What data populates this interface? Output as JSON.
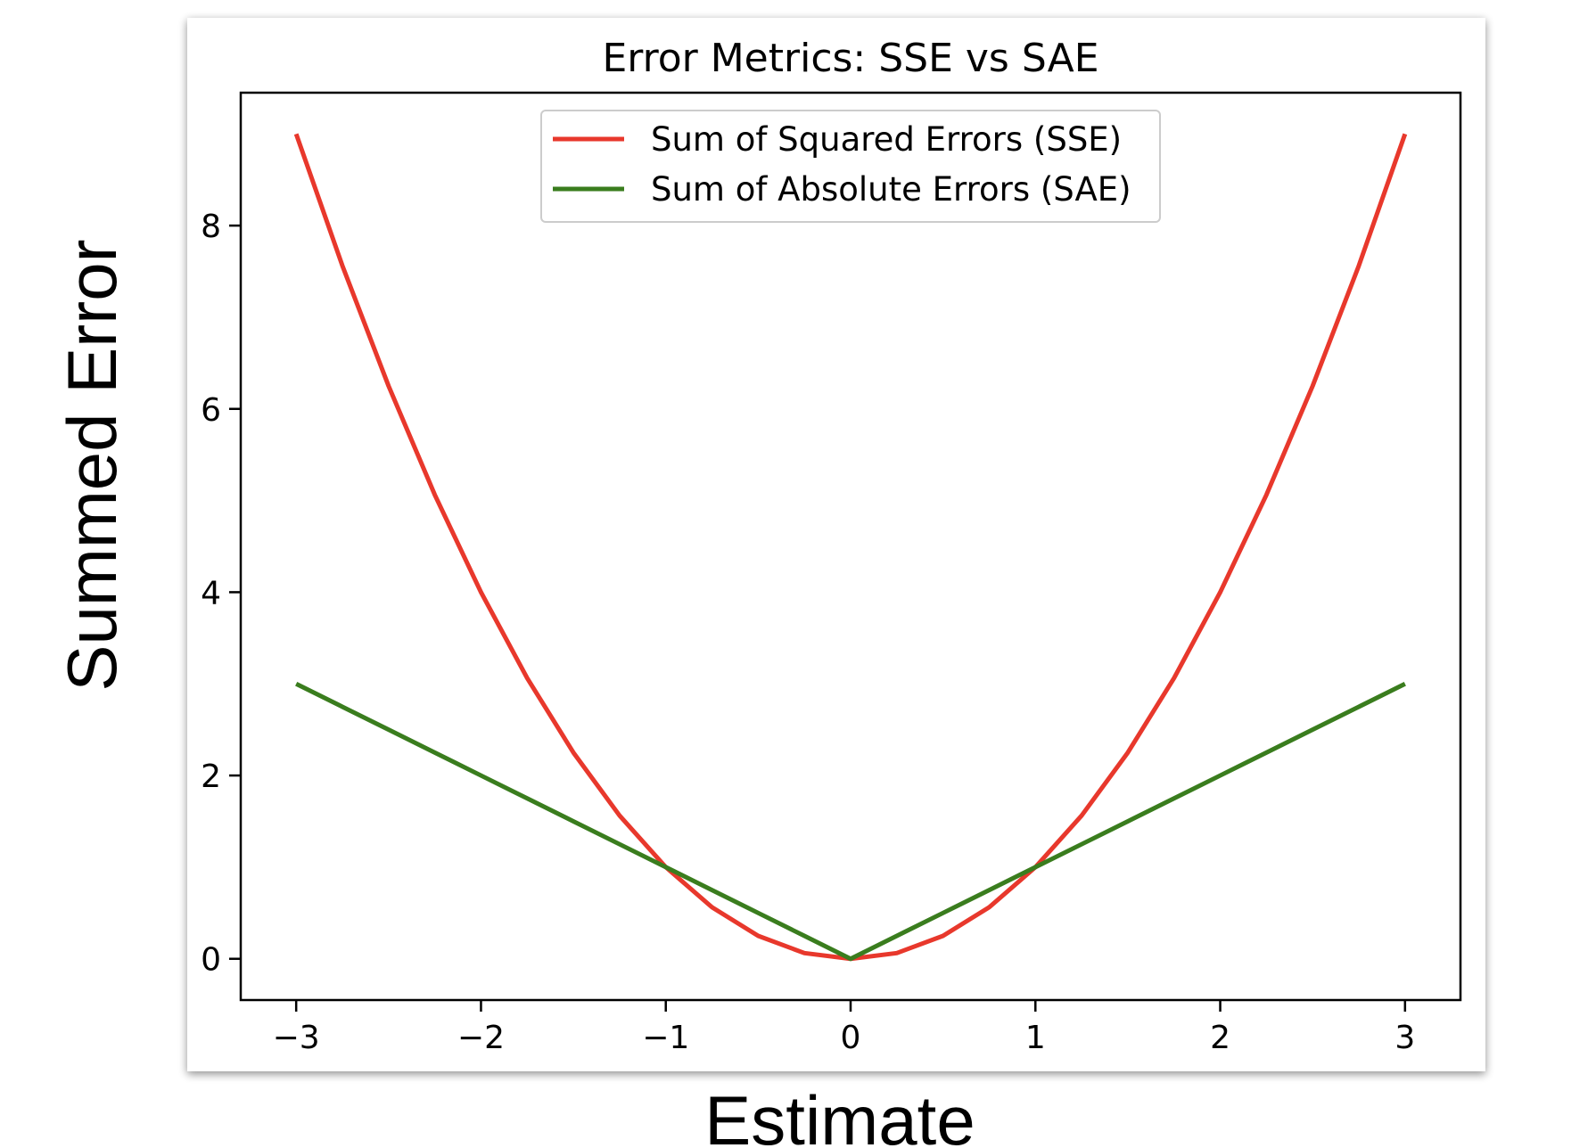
{
  "page": {
    "top_text": "",
    "xlabel": "Estimate",
    "ylabel": "Summed Error"
  },
  "chart_data": {
    "type": "line",
    "title": "Error Metrics: SSE vs SAE",
    "xlabel": "",
    "ylabel": "",
    "xlim": [
      -3.3,
      3.3
    ],
    "ylim": [
      -0.45,
      9.45
    ],
    "xticks": [
      -3,
      -2,
      -1,
      0,
      1,
      2,
      3
    ],
    "xtick_labels": [
      "−3",
      "−2",
      "−1",
      "0",
      "1",
      "2",
      "3"
    ],
    "yticks": [
      0,
      2,
      4,
      6,
      8
    ],
    "ytick_labels": [
      "0",
      "2",
      "4",
      "6",
      "8"
    ],
    "grid": false,
    "legend_position": "top-center",
    "x": [
      -3,
      -2.75,
      -2.5,
      -2.25,
      -2,
      -1.75,
      -1.5,
      -1.25,
      -1,
      -0.75,
      -0.5,
      -0.25,
      0,
      0.25,
      0.5,
      0.75,
      1,
      1.25,
      1.5,
      1.75,
      2,
      2.25,
      2.5,
      2.75,
      3
    ],
    "series": [
      {
        "name": "Sum of Squared Errors (SSE)",
        "color": "#e8382c",
        "values": [
          9,
          7.5625,
          6.25,
          5.0625,
          4,
          3.0625,
          2.25,
          1.5625,
          1,
          0.5625,
          0.25,
          0.0625,
          0,
          0.0625,
          0.25,
          0.5625,
          1,
          1.5625,
          2.25,
          3.0625,
          4,
          5.0625,
          6.25,
          7.5625,
          9
        ]
      },
      {
        "name": "Sum of Absolute Errors (SAE)",
        "color": "#3a7d1e",
        "values": [
          3,
          2.75,
          2.5,
          2.25,
          2,
          1.75,
          1.5,
          1.25,
          1,
          0.75,
          0.5,
          0.25,
          0,
          0.25,
          0.5,
          0.75,
          1,
          1.25,
          1.5,
          1.75,
          2,
          2.25,
          2.5,
          2.75,
          3
        ]
      }
    ]
  }
}
